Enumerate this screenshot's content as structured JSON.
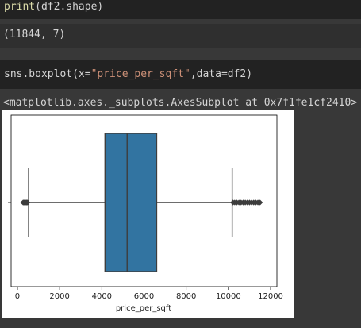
{
  "cells": {
    "cell1_code": {
      "fn": "print",
      "open": "(",
      "arg": "df2.shape",
      "close": ")"
    },
    "cell1_output": "(11844, 7)",
    "cell2_code": {
      "module": "sns.boxplot(",
      "kw": "x=",
      "str": "\"price_per_sqft\"",
      "rest": ",data=df2)"
    },
    "cell2_output": "<matplotlib.axes._subplots.AxesSubplot at 0x7f1fe1cf2410>"
  },
  "chart_data": {
    "type": "boxplot",
    "orientation": "horizontal",
    "xlabel": "price_per_sqft",
    "ylabel": "",
    "xlim": [
      -300,
      12300
    ],
    "xticks": [
      0,
      2000,
      4000,
      6000,
      8000,
      10000,
      12000
    ],
    "xtick_labels": [
      "0",
      "2000",
      "4000",
      "6000",
      "8000",
      "10000",
      "12000"
    ],
    "stats": {
      "whisker_low": 530,
      "q1": 4150,
      "median": 5200,
      "q3": 6600,
      "whisker_high": 10180
    },
    "outliers_low": [
      267,
      300,
      330,
      360,
      390,
      420,
      450,
      480
    ],
    "outliers_high": [
      10220,
      10300,
      10400,
      10500,
      10600,
      10700,
      10800,
      10900,
      11000,
      11100,
      11200,
      11300,
      11400,
      11500
    ],
    "box_color": "#3274a1",
    "edge_color": "#3d3d3d",
    "grid": false
  },
  "colors": {
    "cell_bg": "#222222",
    "page_bg": "#383838",
    "string": "#ce9178",
    "function": "#dcdcaa"
  }
}
